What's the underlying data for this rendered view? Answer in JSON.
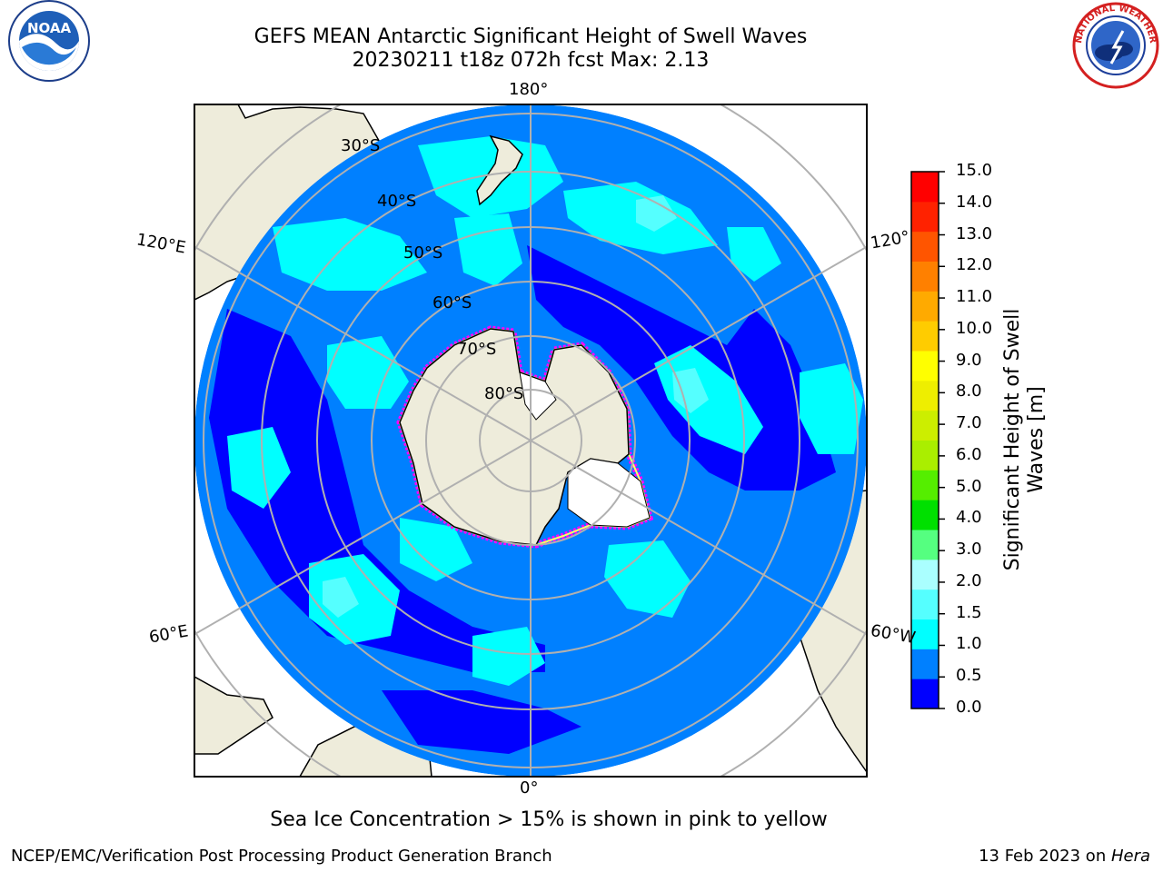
{
  "title": {
    "line1": "GEFS MEAN Antarctic Significant Height of Swell Waves",
    "line2": "20230211 t18z 072h fcst   Max: 2.13"
  },
  "logos": {
    "left": "noaa-logo",
    "right": "national-weather-service-logo",
    "left_text": "NOAA",
    "right_text": "NATIONAL WEATHER SERVICE"
  },
  "map": {
    "projection": "south-polar-stereographic",
    "meridian_labels": {
      "top": "180°",
      "bottom": "0°",
      "upper_left": "120°E",
      "upper_right": "120°",
      "lower_left": "60°E",
      "lower_right": "60°W"
    },
    "latitude_labels": [
      "30°S",
      "40°S",
      "50°S",
      "60°S",
      "70°S",
      "80°S"
    ],
    "colors": {
      "land": "#eeecdb",
      "ice_shelf": "#ffffff",
      "swell_0_05": "#0000ff",
      "swell_05_10": "#0080ff",
      "swell_10_15": "#00ffff",
      "swell_15_20": "#55ffff",
      "gridline": "#b0b0b0",
      "sea_ice": "#ff00ff"
    }
  },
  "colorbar": {
    "label": "Significant Height of Swell Waves [m]",
    "label_line1": "Significant Height of Swell",
    "label_line2": "Waves [m]",
    "ticks": [
      "0.0",
      "0.5",
      "1.0",
      "1.5",
      "2.0",
      "3.0",
      "4.0",
      "5.0",
      "6.0",
      "7.0",
      "8.0",
      "9.0",
      "10.0",
      "11.0",
      "12.0",
      "13.0",
      "14.0",
      "15.0"
    ],
    "colors": [
      "#0000ff",
      "#0080ff",
      "#00ffff",
      "#55ffff",
      "#aaffff",
      "#55ff80",
      "#00e000",
      "#55ee00",
      "#aaee00",
      "#ccee00",
      "#eeee00",
      "#ffff00",
      "#ffcc00",
      "#ffaa00",
      "#ff8000",
      "#ff5500",
      "#ff2200",
      "#ff0000"
    ]
  },
  "caption": "Sea Ice Concentration > 15% is shown in pink to yellow",
  "footer": {
    "left": "NCEP/EMC/Verification Post Processing Product Generation Branch",
    "right_date": "13 Feb 2023 on ",
    "right_host": "Hera"
  }
}
